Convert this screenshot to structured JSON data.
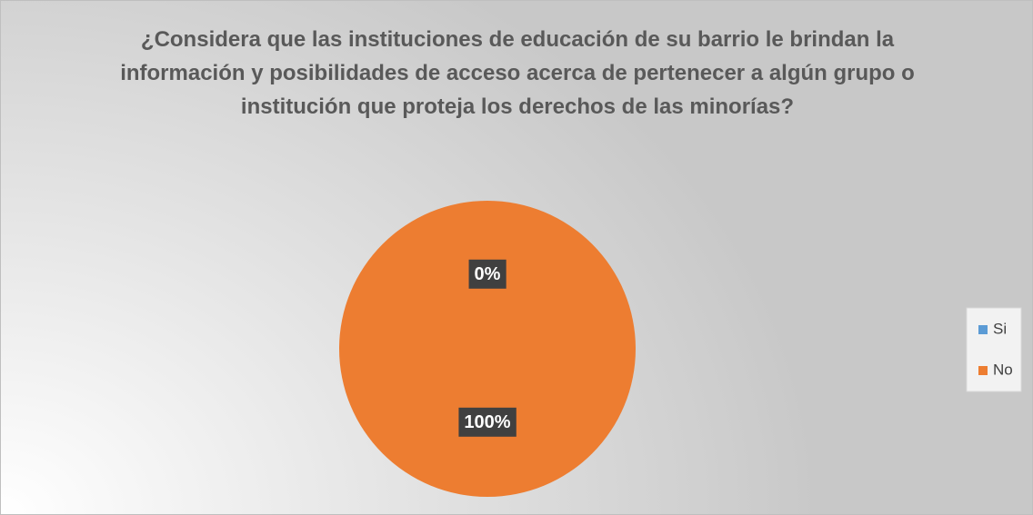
{
  "chart_data": {
    "type": "pie",
    "title": "¿Considera que las instituciones de educación de su barrio le brindan la información y posibilidades de acceso acerca de pertenecer a algún grupo o institución que proteja los derechos de las minorías?",
    "categories": [
      "Si",
      "No"
    ],
    "values": [
      0,
      100
    ],
    "value_labels": [
      "0%",
      "100%"
    ],
    "colors": [
      "#5b9bd5",
      "#ed7d31"
    ],
    "legend": "right"
  }
}
